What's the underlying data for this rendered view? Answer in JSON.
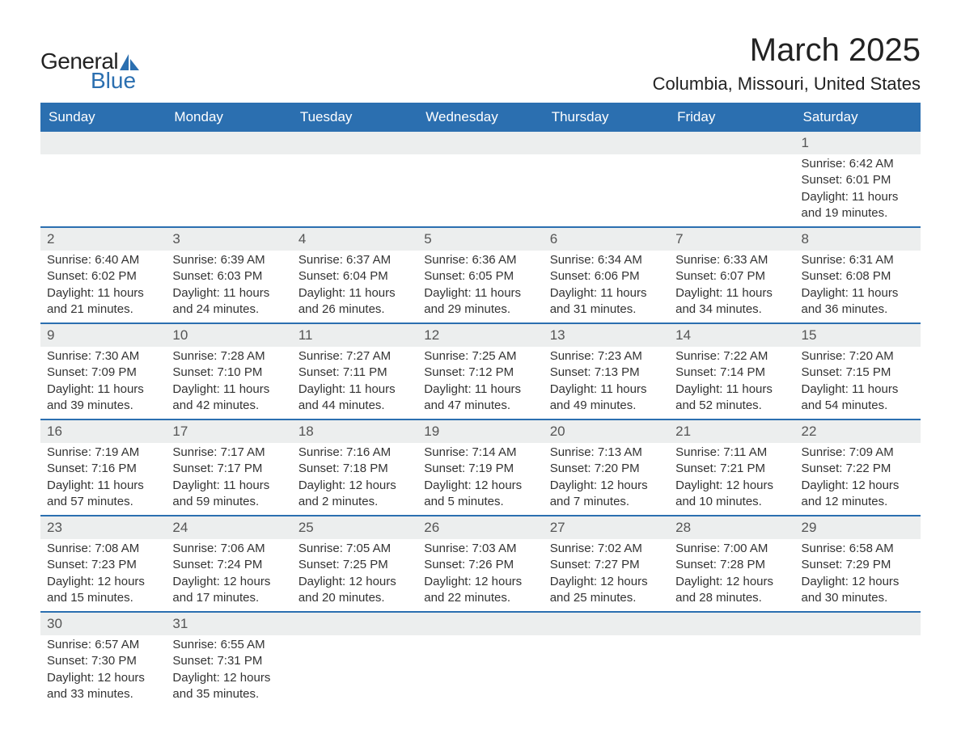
{
  "logo": {
    "text_general": "General",
    "text_blue": "Blue",
    "sail_color": "#2b6fb0"
  },
  "title": "March 2025",
  "location": "Columbia, Missouri, United States",
  "colors": {
    "header_bg": "#2b6fb0",
    "header_fg": "#ffffff",
    "daynum_bg": "#eceeee",
    "row_divider": "#2b6fb0",
    "body_text": "#333333"
  },
  "weekdays": [
    "Sunday",
    "Monday",
    "Tuesday",
    "Wednesday",
    "Thursday",
    "Friday",
    "Saturday"
  ],
  "weeks": [
    [
      null,
      null,
      null,
      null,
      null,
      null,
      {
        "n": "1",
        "sunrise": "Sunrise: 6:42 AM",
        "sunset": "Sunset: 6:01 PM",
        "daylight": "Daylight: 11 hours and 19 minutes."
      }
    ],
    [
      {
        "n": "2",
        "sunrise": "Sunrise: 6:40 AM",
        "sunset": "Sunset: 6:02 PM",
        "daylight": "Daylight: 11 hours and 21 minutes."
      },
      {
        "n": "3",
        "sunrise": "Sunrise: 6:39 AM",
        "sunset": "Sunset: 6:03 PM",
        "daylight": "Daylight: 11 hours and 24 minutes."
      },
      {
        "n": "4",
        "sunrise": "Sunrise: 6:37 AM",
        "sunset": "Sunset: 6:04 PM",
        "daylight": "Daylight: 11 hours and 26 minutes."
      },
      {
        "n": "5",
        "sunrise": "Sunrise: 6:36 AM",
        "sunset": "Sunset: 6:05 PM",
        "daylight": "Daylight: 11 hours and 29 minutes."
      },
      {
        "n": "6",
        "sunrise": "Sunrise: 6:34 AM",
        "sunset": "Sunset: 6:06 PM",
        "daylight": "Daylight: 11 hours and 31 minutes."
      },
      {
        "n": "7",
        "sunrise": "Sunrise: 6:33 AM",
        "sunset": "Sunset: 6:07 PM",
        "daylight": "Daylight: 11 hours and 34 minutes."
      },
      {
        "n": "8",
        "sunrise": "Sunrise: 6:31 AM",
        "sunset": "Sunset: 6:08 PM",
        "daylight": "Daylight: 11 hours and 36 minutes."
      }
    ],
    [
      {
        "n": "9",
        "sunrise": "Sunrise: 7:30 AM",
        "sunset": "Sunset: 7:09 PM",
        "daylight": "Daylight: 11 hours and 39 minutes."
      },
      {
        "n": "10",
        "sunrise": "Sunrise: 7:28 AM",
        "sunset": "Sunset: 7:10 PM",
        "daylight": "Daylight: 11 hours and 42 minutes."
      },
      {
        "n": "11",
        "sunrise": "Sunrise: 7:27 AM",
        "sunset": "Sunset: 7:11 PM",
        "daylight": "Daylight: 11 hours and 44 minutes."
      },
      {
        "n": "12",
        "sunrise": "Sunrise: 7:25 AM",
        "sunset": "Sunset: 7:12 PM",
        "daylight": "Daylight: 11 hours and 47 minutes."
      },
      {
        "n": "13",
        "sunrise": "Sunrise: 7:23 AM",
        "sunset": "Sunset: 7:13 PM",
        "daylight": "Daylight: 11 hours and 49 minutes."
      },
      {
        "n": "14",
        "sunrise": "Sunrise: 7:22 AM",
        "sunset": "Sunset: 7:14 PM",
        "daylight": "Daylight: 11 hours and 52 minutes."
      },
      {
        "n": "15",
        "sunrise": "Sunrise: 7:20 AM",
        "sunset": "Sunset: 7:15 PM",
        "daylight": "Daylight: 11 hours and 54 minutes."
      }
    ],
    [
      {
        "n": "16",
        "sunrise": "Sunrise: 7:19 AM",
        "sunset": "Sunset: 7:16 PM",
        "daylight": "Daylight: 11 hours and 57 minutes."
      },
      {
        "n": "17",
        "sunrise": "Sunrise: 7:17 AM",
        "sunset": "Sunset: 7:17 PM",
        "daylight": "Daylight: 11 hours and 59 minutes."
      },
      {
        "n": "18",
        "sunrise": "Sunrise: 7:16 AM",
        "sunset": "Sunset: 7:18 PM",
        "daylight": "Daylight: 12 hours and 2 minutes."
      },
      {
        "n": "19",
        "sunrise": "Sunrise: 7:14 AM",
        "sunset": "Sunset: 7:19 PM",
        "daylight": "Daylight: 12 hours and 5 minutes."
      },
      {
        "n": "20",
        "sunrise": "Sunrise: 7:13 AM",
        "sunset": "Sunset: 7:20 PM",
        "daylight": "Daylight: 12 hours and 7 minutes."
      },
      {
        "n": "21",
        "sunrise": "Sunrise: 7:11 AM",
        "sunset": "Sunset: 7:21 PM",
        "daylight": "Daylight: 12 hours and 10 minutes."
      },
      {
        "n": "22",
        "sunrise": "Sunrise: 7:09 AM",
        "sunset": "Sunset: 7:22 PM",
        "daylight": "Daylight: 12 hours and 12 minutes."
      }
    ],
    [
      {
        "n": "23",
        "sunrise": "Sunrise: 7:08 AM",
        "sunset": "Sunset: 7:23 PM",
        "daylight": "Daylight: 12 hours and 15 minutes."
      },
      {
        "n": "24",
        "sunrise": "Sunrise: 7:06 AM",
        "sunset": "Sunset: 7:24 PM",
        "daylight": "Daylight: 12 hours and 17 minutes."
      },
      {
        "n": "25",
        "sunrise": "Sunrise: 7:05 AM",
        "sunset": "Sunset: 7:25 PM",
        "daylight": "Daylight: 12 hours and 20 minutes."
      },
      {
        "n": "26",
        "sunrise": "Sunrise: 7:03 AM",
        "sunset": "Sunset: 7:26 PM",
        "daylight": "Daylight: 12 hours and 22 minutes."
      },
      {
        "n": "27",
        "sunrise": "Sunrise: 7:02 AM",
        "sunset": "Sunset: 7:27 PM",
        "daylight": "Daylight: 12 hours and 25 minutes."
      },
      {
        "n": "28",
        "sunrise": "Sunrise: 7:00 AM",
        "sunset": "Sunset: 7:28 PM",
        "daylight": "Daylight: 12 hours and 28 minutes."
      },
      {
        "n": "29",
        "sunrise": "Sunrise: 6:58 AM",
        "sunset": "Sunset: 7:29 PM",
        "daylight": "Daylight: 12 hours and 30 minutes."
      }
    ],
    [
      {
        "n": "30",
        "sunrise": "Sunrise: 6:57 AM",
        "sunset": "Sunset: 7:30 PM",
        "daylight": "Daylight: 12 hours and 33 minutes."
      },
      {
        "n": "31",
        "sunrise": "Sunrise: 6:55 AM",
        "sunset": "Sunset: 7:31 PM",
        "daylight": "Daylight: 12 hours and 35 minutes."
      },
      null,
      null,
      null,
      null,
      null
    ]
  ]
}
